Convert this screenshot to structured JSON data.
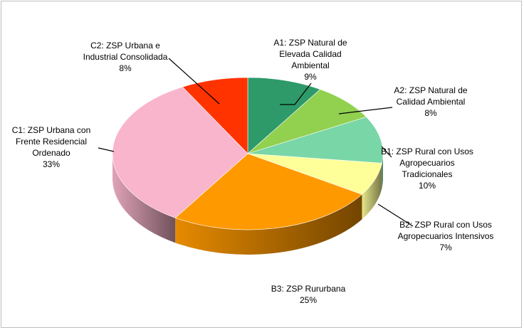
{
  "chart_data": {
    "type": "pie",
    "title": "",
    "slices": [
      {
        "name_lines": [
          "A1: ZSP Natural de",
          "Elevada Calidad",
          "Ambiental"
        ],
        "value_label": "9%",
        "value": 9,
        "color": "#2e9a6a"
      },
      {
        "name_lines": [
          "A2: ZSP Natural de",
          "Calidad Ambiental"
        ],
        "value_label": "8%",
        "value": 8,
        "color": "#92d050"
      },
      {
        "name_lines": [
          "B1: ZSP Rural con Usos",
          "Agropecuarios",
          "Tradicionales"
        ],
        "value_label": "10%",
        "value": 10,
        "color": "#79d6a7"
      },
      {
        "name_lines": [
          "B2: ZSP Rural con Usos",
          "Agropecuarios Intensivos"
        ],
        "value_label": "7%",
        "value": 7,
        "color": "#ffff99"
      },
      {
        "name_lines": [
          "B3: ZSP Rururbana"
        ],
        "value_label": "25%",
        "value": 25,
        "color": "#ff9900"
      },
      {
        "name_lines": [
          "C1: ZSP Urbana con",
          "Frente Residencial",
          "Ordenado"
        ],
        "value_label": "33%",
        "value": 33,
        "color": "#f9b5cc"
      },
      {
        "name_lines": [
          "C2: ZSP Urbana e",
          "Industrial Consolidada"
        ],
        "value_label": "8%",
        "value": 8,
        "color": "#ff3300"
      }
    ],
    "legend": "none"
  }
}
